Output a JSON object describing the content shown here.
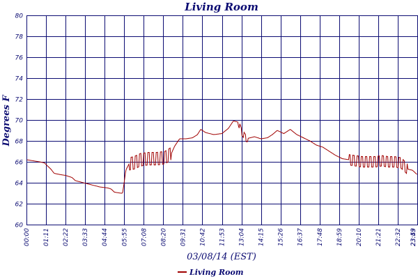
{
  "chart_data": {
    "type": "line",
    "title": "Living Room",
    "xlabel": "03/08/14 (EST)",
    "ylabel": "Degrees F",
    "ylim": [
      60,
      80
    ],
    "yticks": [
      "60",
      "62",
      "64",
      "66",
      "68",
      "70",
      "72",
      "74",
      "76",
      "78",
      "80"
    ],
    "xticks": [
      "00:00",
      "01:11",
      "02:22",
      "03:33",
      "04:44",
      "05:55",
      "07:08",
      "08:20",
      "09:31",
      "10:42",
      "11:53",
      "13:04",
      "14:15",
      "15:26",
      "16:37",
      "17:48",
      "18:59",
      "20:10",
      "21:21",
      "22:32",
      "23:43",
      "23:59"
    ],
    "grid": true,
    "legend": "bottom",
    "color": "#a00000",
    "series": [
      {
        "name": "Living Room",
        "points": [
          [
            0.0,
            66.2
          ],
          [
            0.4,
            66.1
          ],
          [
            0.8,
            66.0
          ],
          [
            1.1,
            65.9
          ],
          [
            1.3,
            65.6
          ],
          [
            1.5,
            65.3
          ],
          [
            1.7,
            64.9
          ],
          [
            2.0,
            64.8
          ],
          [
            2.4,
            64.7
          ],
          [
            2.8,
            64.5
          ],
          [
            3.0,
            64.2
          ],
          [
            3.5,
            64.0
          ],
          [
            4.0,
            63.8
          ],
          [
            4.5,
            63.6
          ],
          [
            5.0,
            63.5
          ],
          [
            5.2,
            63.4
          ],
          [
            5.4,
            63.1
          ],
          [
            5.8,
            63.0
          ],
          [
            5.9,
            63.0
          ],
          [
            6.0,
            64.0
          ],
          [
            6.1,
            65.2
          ],
          [
            6.3,
            65.8
          ],
          [
            6.6,
            65.9
          ],
          [
            7.0,
            66.2
          ],
          [
            7.5,
            66.3
          ],
          [
            8.0,
            66.3
          ],
          [
            8.5,
            66.4
          ],
          [
            8.9,
            66.8
          ],
          [
            9.1,
            67.5
          ],
          [
            9.4,
            68.2
          ],
          [
            9.8,
            68.2
          ],
          [
            10.2,
            68.3
          ],
          [
            10.5,
            68.6
          ],
          [
            10.7,
            69.1
          ],
          [
            11.0,
            68.8
          ],
          [
            11.5,
            68.6
          ],
          [
            12.0,
            68.7
          ],
          [
            12.4,
            69.2
          ],
          [
            12.7,
            69.9
          ],
          [
            13.0,
            69.8
          ],
          [
            13.2,
            68.9
          ],
          [
            13.5,
            68.2
          ],
          [
            14.0,
            68.4
          ],
          [
            14.4,
            68.2
          ],
          [
            14.8,
            68.3
          ],
          [
            15.1,
            68.6
          ],
          [
            15.4,
            69.0
          ],
          [
            15.8,
            68.7
          ],
          [
            16.2,
            69.1
          ],
          [
            16.6,
            68.6
          ],
          [
            17.0,
            68.3
          ],
          [
            17.4,
            68.0
          ],
          [
            17.8,
            67.6
          ],
          [
            18.2,
            67.4
          ],
          [
            18.6,
            67.0
          ],
          [
            19.0,
            66.6
          ],
          [
            19.4,
            66.3
          ],
          [
            19.8,
            66.2
          ],
          [
            20.2,
            66.1
          ],
          [
            20.6,
            66.0
          ],
          [
            21.0,
            66.0
          ],
          [
            21.4,
            66.0
          ],
          [
            21.8,
            66.1
          ],
          [
            22.2,
            66.0
          ],
          [
            22.6,
            66.0
          ],
          [
            23.0,
            65.9
          ],
          [
            23.4,
            65.3
          ],
          [
            23.7,
            65.2
          ],
          [
            23.98,
            64.8
          ]
        ],
        "oscillation": [
          {
            "from": 6.3,
            "to": 8.9,
            "amplitude": 0.6
          },
          {
            "from": 13.0,
            "to": 13.6,
            "amplitude": 0.3
          },
          {
            "from": 19.8,
            "to": 23.4,
            "amplitude": 0.5
          }
        ]
      }
    ]
  }
}
